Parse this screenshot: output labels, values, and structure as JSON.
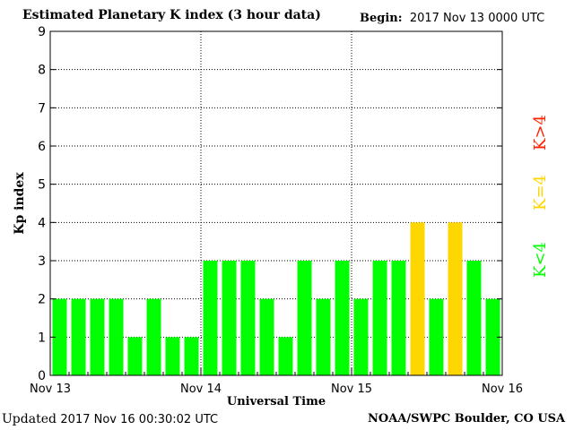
{
  "header": {
    "title": "Estimated Planetary K index (3 hour data)",
    "begin_label": "Begin:",
    "begin_value": "2017 Nov 13 0000 UTC"
  },
  "footer": {
    "updated_label": "Updated",
    "updated_value": "2017 Nov 16 00:30:02 UTC",
    "credit": "NOAA/SWPC Boulder, CO USA"
  },
  "colors": {
    "low": "#00ff00",
    "moderate": "#ffd700",
    "high": "#ff2200"
  },
  "legend": [
    {
      "text": "K<4",
      "color": "#00ff00"
    },
    {
      "text": "K=4",
      "color": "#ffd700"
    },
    {
      "text": "K>4",
      "color": "#ff2200"
    }
  ],
  "chart_data": {
    "type": "bar",
    "title": "Estimated Planetary K index (3 hour data)",
    "xlabel": "Universal Time",
    "ylabel": "Kp index",
    "ylim": [
      0,
      9
    ],
    "yticks": [
      0,
      1,
      2,
      3,
      4,
      5,
      6,
      7,
      8,
      9
    ],
    "xtick_labels": [
      "Nov 13",
      "Nov 14",
      "Nov 15",
      "Nov 16"
    ],
    "grid": true,
    "series": [
      {
        "values": [
          2,
          2,
          2,
          2,
          1,
          2,
          1,
          1,
          3,
          3,
          3,
          2,
          1,
          3,
          2,
          3,
          2,
          3,
          3,
          4,
          2,
          4,
          3,
          2
        ]
      }
    ]
  }
}
